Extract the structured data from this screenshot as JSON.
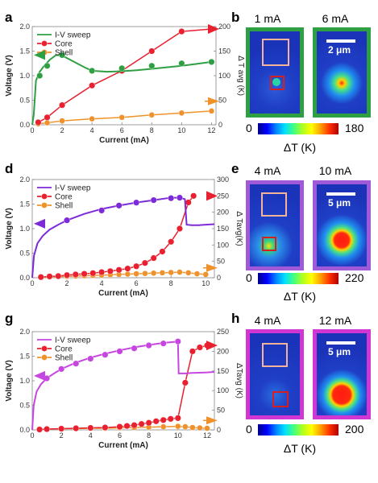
{
  "panels": {
    "a": "a",
    "b": "b",
    "d": "d",
    "e": "e",
    "g": "g",
    "h": "h"
  },
  "colors": {
    "core": "#e8202f",
    "shell": "#f0922b",
    "iv_a": "#2ea043",
    "iv_d": "#7d2bd8",
    "iv_g": "#c646e0",
    "orange_box": "#f5b49a",
    "red_box": "#d42020"
  },
  "chart_data": [
    {
      "panel": "a",
      "type": "line",
      "xlabel": "Current (mA)",
      "ylabel_left": "Voltage (V)",
      "ylabel_right": "Δ T avg (K)",
      "xlim": [
        0,
        12.3
      ],
      "ylim_left": [
        0,
        2.0
      ],
      "ylim_right": [
        0,
        200
      ],
      "xticks": [
        0,
        2,
        4,
        6,
        8,
        10,
        12
      ],
      "yticks_left": [
        "0.0",
        "0.5",
        "1.0",
        "1.5",
        "2.0"
      ],
      "yticks_right": [
        "0",
        "50",
        "100",
        "150",
        "200"
      ],
      "legend": [
        "I-V sweep",
        "Core",
        "Shell"
      ],
      "iv_line": {
        "x": [
          0,
          0.1,
          0.25,
          0.5,
          0.8,
          1.2,
          1.6,
          2.0,
          2.5,
          3.0,
          3.5,
          4.0,
          4.5,
          5.0,
          6,
          7,
          8,
          9,
          10,
          11,
          12
        ],
        "y": [
          0,
          0.2,
          0.9,
          1.08,
          1.2,
          1.33,
          1.42,
          1.41,
          1.33,
          1.25,
          1.17,
          1.1,
          1.09,
          1.08,
          1.09,
          1.11,
          1.14,
          1.17,
          1.2,
          1.24,
          1.28
        ]
      },
      "iv_points": {
        "x": [
          0.5,
          1,
          2,
          4,
          6,
          8,
          10,
          12
        ],
        "y": [
          1.0,
          1.2,
          1.42,
          1.1,
          1.15,
          1.2,
          1.25,
          1.28
        ]
      },
      "core": {
        "x": [
          0.4,
          1,
          2,
          4,
          6,
          8,
          10,
          12
        ],
        "y": [
          5,
          15,
          40,
          80,
          110,
          150,
          190,
          195
        ]
      },
      "shell": {
        "x": [
          0.4,
          1,
          2,
          4,
          6,
          8,
          10,
          12
        ],
        "y": [
          2,
          4,
          8,
          12,
          15,
          20,
          24,
          28
        ]
      }
    },
    {
      "panel": "d",
      "type": "line",
      "xlabel": "Current (mA)",
      "ylabel_left": "Voltage (V)",
      "ylabel_right": "Δ Tavg(K)",
      "xlim": [
        0,
        10.5
      ],
      "ylim_left": [
        0,
        2.0
      ],
      "ylim_right": [
        0,
        300
      ],
      "xticks": [
        0,
        2,
        4,
        6,
        8,
        10
      ],
      "yticks_left": [
        "0.0",
        "0.5",
        "1.0",
        "1.5",
        "2.0"
      ],
      "yticks_right": [
        "0",
        "50",
        "100",
        "150",
        "200",
        "250",
        "300"
      ],
      "legend": [
        "I-V sweep",
        "Core",
        "Shell"
      ],
      "iv_line": {
        "x": [
          0,
          0.1,
          0.3,
          0.6,
          1,
          1.5,
          2,
          3,
          4,
          5,
          6,
          7,
          8,
          8.5,
          8.8,
          8.9,
          9.2,
          9.6,
          10,
          10.5
        ],
        "y": [
          0,
          0.45,
          0.7,
          0.85,
          0.98,
          1.08,
          1.17,
          1.3,
          1.4,
          1.47,
          1.53,
          1.58,
          1.63,
          1.63,
          1.6,
          1.08,
          1.07,
          1.07,
          1.08,
          1.09
        ]
      },
      "iv_points": {
        "x": [
          2,
          4,
          5,
          6,
          7,
          8,
          8.5
        ],
        "y": [
          1.17,
          1.37,
          1.47,
          1.53,
          1.58,
          1.62,
          1.63
        ]
      },
      "core": {
        "x": [
          0.5,
          1,
          1.5,
          2,
          2.5,
          3,
          3.5,
          4,
          4.5,
          5,
          5.5,
          6,
          6.5,
          7,
          7.5,
          8,
          8.5,
          9,
          9.3
        ],
        "y": [
          2,
          4,
          5,
          8,
          10,
          12,
          14,
          17,
          20,
          24,
          28,
          35,
          45,
          60,
          80,
          110,
          150,
          230,
          250
        ]
      },
      "shell": {
        "x": [
          0.5,
          1,
          1.5,
          2,
          2.5,
          3,
          3.5,
          4,
          4.5,
          5,
          5.5,
          6,
          6.5,
          7,
          7.5,
          8,
          8.5,
          9,
          9.5,
          10
        ],
        "y": [
          1,
          2,
          3,
          4,
          5,
          6,
          7,
          8,
          9,
          10,
          11,
          12,
          13,
          14,
          15,
          16,
          17,
          15,
          12,
          10
        ]
      }
    },
    {
      "panel": "g",
      "type": "line",
      "xlabel": "Current (mA)",
      "ylabel_left": "Voltage (V)",
      "ylabel_right": "ΔTavg (K)",
      "xlim": [
        0,
        12.5
      ],
      "ylim_left": [
        0,
        2.0
      ],
      "ylim_right": [
        0,
        250
      ],
      "xticks": [
        0,
        2,
        4,
        6,
        8,
        10,
        12
      ],
      "yticks_left": [
        "0.0",
        "0.5",
        "1.0",
        "1.5",
        "2.0"
      ],
      "yticks_right": [
        "0",
        "50",
        "100",
        "150",
        "200",
        "250"
      ],
      "legend": [
        "I-V sweep",
        "Core",
        "Shell"
      ],
      "iv_line": {
        "x": [
          0,
          0.1,
          0.3,
          0.6,
          1,
          1.5,
          2,
          3,
          4,
          5,
          6,
          7,
          8,
          9,
          10,
          10.05,
          10.5,
          11,
          12,
          12.5
        ],
        "y": [
          0,
          0.5,
          0.78,
          0.93,
          1.05,
          1.15,
          1.24,
          1.37,
          1.47,
          1.55,
          1.62,
          1.68,
          1.73,
          1.77,
          1.8,
          1.15,
          1.15,
          1.16,
          1.17,
          1.18
        ]
      },
      "iv_points": {
        "x": [
          1,
          2,
          3,
          4,
          5,
          6,
          7,
          8,
          9,
          10
        ],
        "y": [
          1.05,
          1.24,
          1.35,
          1.45,
          1.53,
          1.6,
          1.66,
          1.72,
          1.76,
          1.8
        ]
      },
      "core": {
        "x": [
          0.5,
          1,
          2,
          3,
          4,
          5,
          6,
          6.5,
          7,
          7.5,
          8,
          8.5,
          9,
          9.5,
          10,
          10.5,
          11,
          11.5,
          12
        ],
        "y": [
          1,
          2,
          3,
          4,
          5,
          6,
          8,
          10,
          12,
          15,
          18,
          22,
          25,
          28,
          30,
          120,
          200,
          210,
          215
        ]
      },
      "shell": {
        "x": [
          0.5,
          1,
          2,
          3,
          4,
          5,
          6,
          7,
          8,
          9,
          10,
          10.5,
          11,
          11.5,
          12
        ],
        "y": [
          1,
          2,
          3,
          3,
          4,
          4,
          5,
          6,
          7,
          8,
          9,
          8,
          6,
          5,
          4
        ]
      }
    }
  ],
  "thermal_panels": [
    {
      "panel": "b",
      "left_label": "1 mA",
      "right_label": "6 mA",
      "scale_text": "2 μm",
      "cbar_min": "0",
      "cbar_max": "180",
      "cbar_title": "ΔT (K)",
      "frame_color": "#2ea043"
    },
    {
      "panel": "e",
      "left_label": "4 mA",
      "right_label": "10 mA",
      "scale_text": "5 μm",
      "cbar_min": "0",
      "cbar_max": "220",
      "cbar_title": "ΔT (K)",
      "frame_color": "#a05ad8"
    },
    {
      "panel": "h",
      "left_label": "4 mA",
      "right_label": "12 mA",
      "scale_text": "5 μm",
      "cbar_min": "0",
      "cbar_max": "200",
      "cbar_title": "ΔT (K)",
      "frame_color": "#d236d2"
    }
  ]
}
